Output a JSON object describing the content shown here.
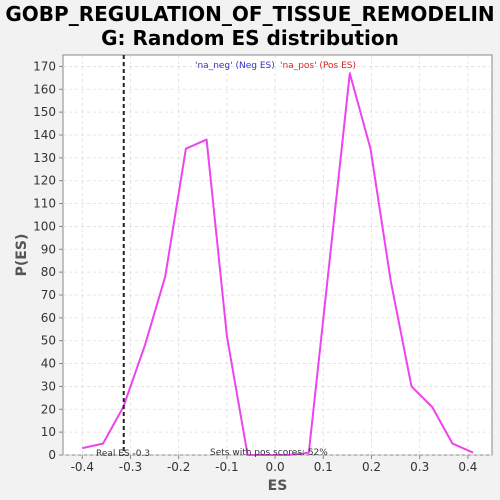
{
  "title_lines": [
    "GOBP_REGULATION_OF_TISSUE_REMODELIN",
    "G: Random ES distribution"
  ],
  "chart_data": {
    "type": "line",
    "xlabel": "ES",
    "ylabel": "P(ES)",
    "xlim": [
      -0.44,
      0.45
    ],
    "ylim": [
      0,
      175
    ],
    "x_ticks": [
      -0.4,
      -0.3,
      -0.2,
      -0.1,
      0.0,
      0.1,
      0.2,
      0.3,
      0.4
    ],
    "x_tick_labels": [
      "-0.4",
      "-0.3",
      "-0.2",
      "-0.1",
      "0.0",
      "0.1",
      "0.2",
      "0.3",
      "0.4"
    ],
    "y_ticks": [
      0,
      10,
      20,
      30,
      40,
      50,
      60,
      70,
      80,
      90,
      100,
      110,
      120,
      130,
      140,
      150,
      160,
      170
    ],
    "grid": true,
    "series": [
      {
        "color": "#ee44ee",
        "x": [
          -0.4,
          -0.357,
          -0.315,
          -0.27,
          -0.228,
          -0.185,
          -0.142,
          -0.1,
          -0.057,
          -0.015,
          0.028,
          0.07,
          0.113,
          0.155,
          0.198,
          0.24,
          0.283,
          0.326,
          0.368,
          0.411
        ],
        "y": [
          3,
          5,
          21,
          48,
          78,
          134,
          138,
          52,
          0,
          0,
          0,
          1,
          85,
          167,
          134,
          76,
          30,
          21,
          5,
          1
        ]
      }
    ],
    "real_es": -0.314,
    "legend": [
      {
        "label": "'na_neg' (Neg ES)",
        "color": "#3333cc"
      },
      {
        "label": "'na_pos' (Pos ES)",
        "color": "#dd2222"
      }
    ],
    "legend_placement": "top-center",
    "annotations": {
      "real_es": "Real ES -0.3",
      "pos_scores": "Sets with pos scores: 52%"
    }
  }
}
